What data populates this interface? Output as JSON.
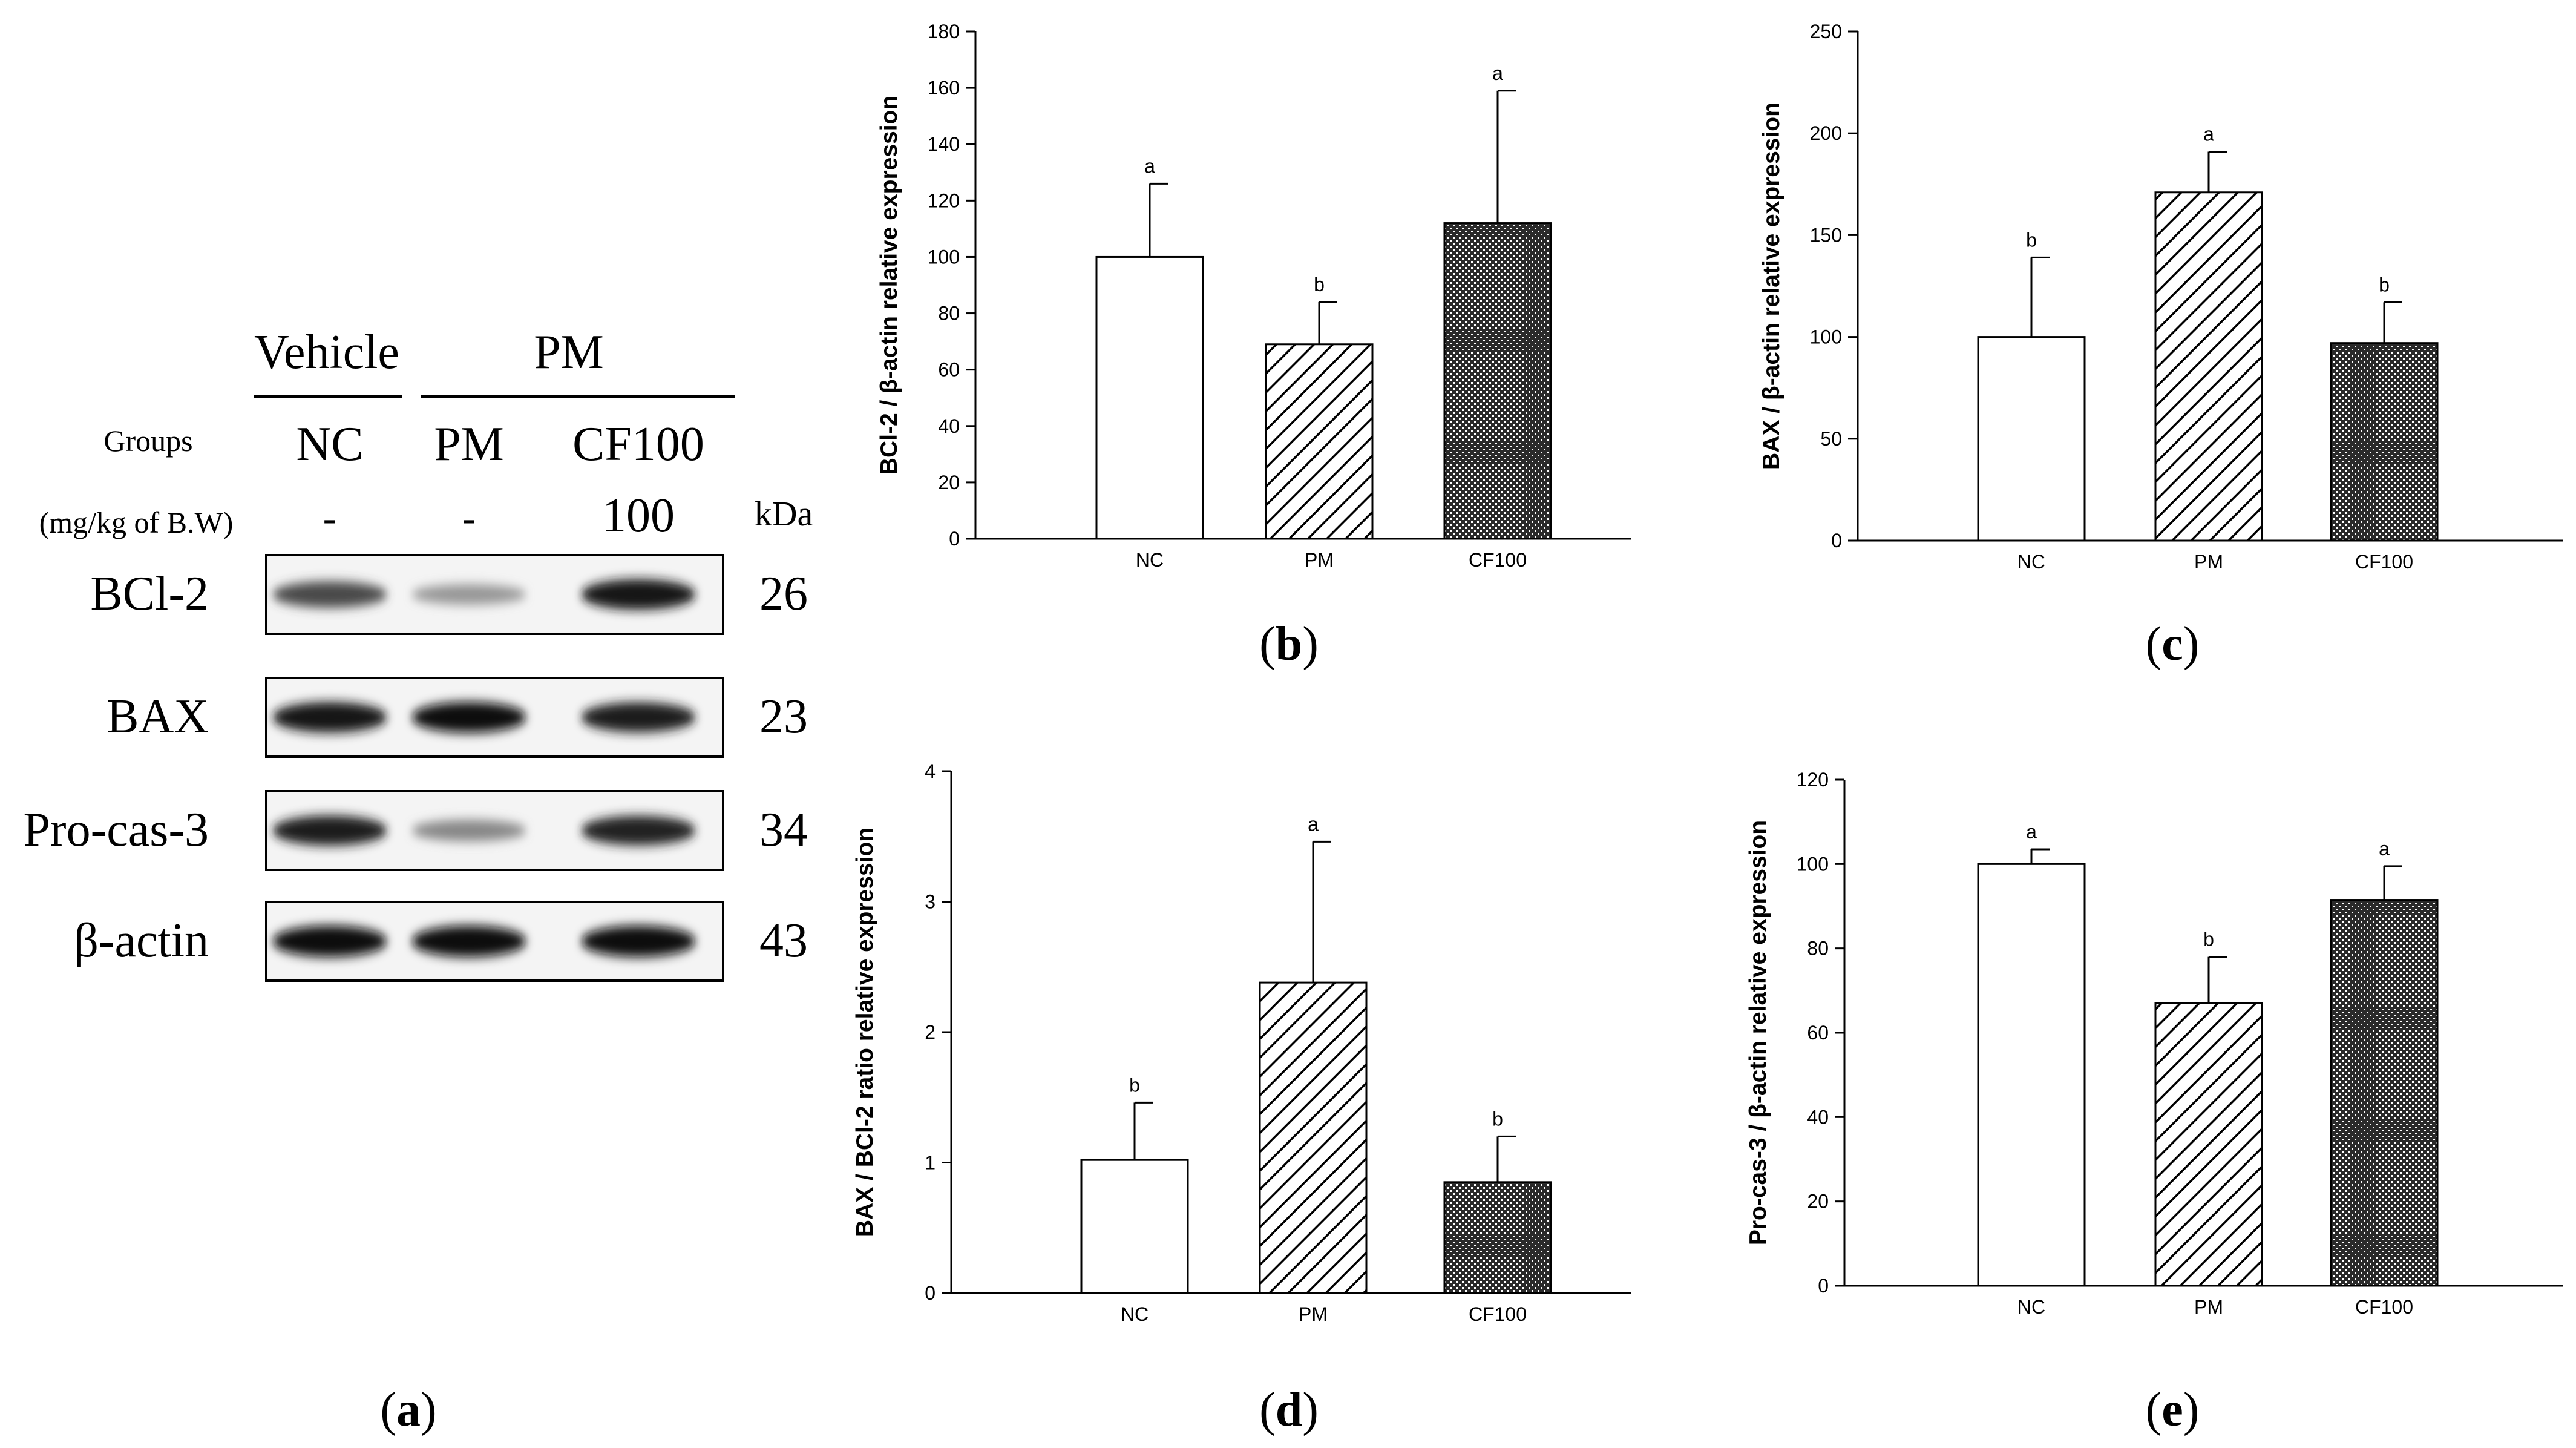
{
  "western_blot": {
    "header_vehicle": "Vehicle",
    "header_pm": "PM",
    "groups_label": "Groups",
    "groups": [
      "NC",
      "PM",
      "CF100"
    ],
    "dose_label": "(mg/kg of B.W)",
    "doses": [
      "-",
      "-",
      "100"
    ],
    "kda_label": "kDa",
    "proteins": [
      {
        "name": "BCl-2",
        "kda": "26",
        "intensity": [
          0.72,
          0.38,
          0.95
        ]
      },
      {
        "name": "BAX",
        "kda": "23",
        "intensity": [
          0.95,
          0.97,
          0.92
        ]
      },
      {
        "name": "Pro-cas-3",
        "kda": "34",
        "intensity": [
          0.92,
          0.45,
          0.9
        ]
      },
      {
        "name": "β-actin",
        "kda": "43",
        "intensity": [
          1.0,
          1.0,
          1.0
        ]
      }
    ],
    "panel_label": "a"
  },
  "chart_data": [
    {
      "type": "bar",
      "panel_label": "b",
      "ylabel": "BCl-2 / β-actin relative expression",
      "categories": [
        "NC",
        "PM",
        "CF100"
      ],
      "values": [
        100,
        69,
        112
      ],
      "errors": [
        26,
        15,
        47
      ],
      "letters": [
        "a",
        "b",
        "a"
      ],
      "ylim": [
        0,
        180
      ],
      "yticks": [
        0,
        20,
        40,
        60,
        80,
        100,
        120,
        140,
        160,
        180
      ],
      "patterns": [
        "none",
        "hatch",
        "cross"
      ]
    },
    {
      "type": "bar",
      "panel_label": "c",
      "ylabel": "BAX / β-actin relative expression",
      "categories": [
        "NC",
        "PM",
        "CF100"
      ],
      "values": [
        100,
        171,
        97
      ],
      "errors": [
        39,
        20,
        20
      ],
      "letters": [
        "b",
        "a",
        "b"
      ],
      "ylim": [
        0,
        250
      ],
      "yticks": [
        0,
        50,
        100,
        150,
        200,
        250
      ],
      "patterns": [
        "none",
        "hatch",
        "cross"
      ]
    },
    {
      "type": "bar",
      "panel_label": "d",
      "ylabel": "BAX / BCl-2 ratio relative expression",
      "categories": [
        "NC",
        "PM",
        "CF100"
      ],
      "values": [
        1.02,
        2.38,
        0.85
      ],
      "errors": [
        0.44,
        1.08,
        0.35
      ],
      "letters": [
        "b",
        "a",
        "b"
      ],
      "ylim": [
        0,
        4
      ],
      "yticks": [
        0,
        1,
        2,
        3,
        4
      ],
      "patterns": [
        "none",
        "hatch",
        "cross"
      ]
    },
    {
      "type": "bar",
      "panel_label": "e",
      "ylabel": "Pro-cas-3 / β-actin relative expression",
      "categories": [
        "NC",
        "PM",
        "CF100"
      ],
      "values": [
        100,
        67,
        91.5
      ],
      "errors": [
        3.5,
        11,
        8
      ],
      "letters": [
        "a",
        "b",
        "a"
      ],
      "ylim": [
        0,
        120
      ],
      "yticks": [
        0,
        20,
        40,
        60,
        80,
        100,
        120
      ],
      "patterns": [
        "none",
        "hatch",
        "cross"
      ]
    }
  ]
}
